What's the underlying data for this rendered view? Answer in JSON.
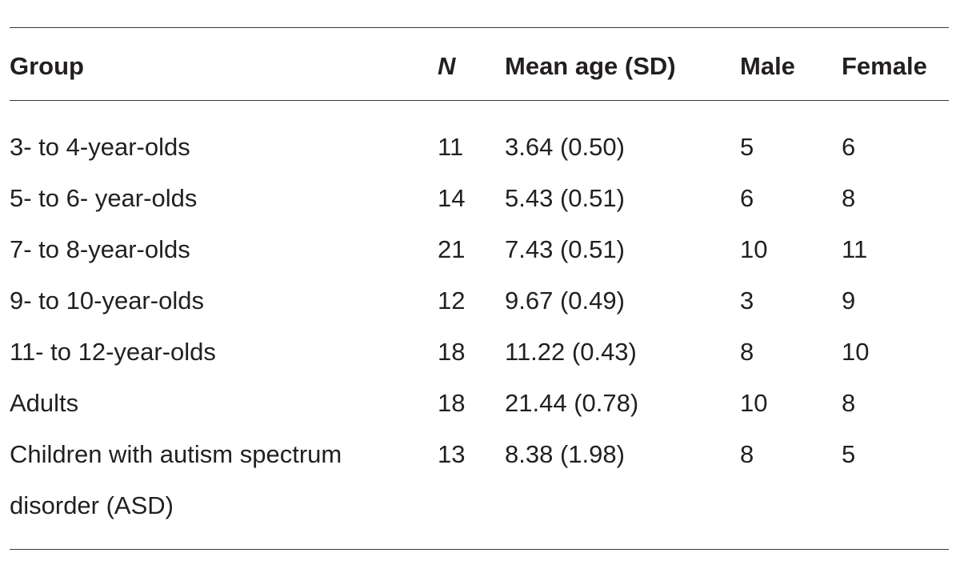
{
  "table": {
    "headers": {
      "group": "Group",
      "n": "N",
      "mean_age": "Mean age (SD)",
      "male": "Male",
      "female": "Female"
    },
    "rows": [
      {
        "group": "3- to 4-year-olds",
        "n": "11",
        "mean_age": "3.64 (0.50)",
        "male": "5",
        "female": "6"
      },
      {
        "group": "5- to 6- year-olds",
        "n": "14",
        "mean_age": "5.43 (0.51)",
        "male": "6",
        "female": "8"
      },
      {
        "group": "7- to 8-year-olds",
        "n": "21",
        "mean_age": "7.43 (0.51)",
        "male": "10",
        "female": "11"
      },
      {
        "group": "9- to 10-year-olds",
        "n": "12",
        "mean_age": "9.67 (0.49)",
        "male": "3",
        "female": "9"
      },
      {
        "group": "11- to 12-year-olds",
        "n": "18",
        "mean_age": "11.22 (0.43)",
        "male": "8",
        "female": "10"
      },
      {
        "group": "Adults",
        "n": "18",
        "mean_age": "21.44 (0.78)",
        "male": "10",
        "female": "8"
      },
      {
        "group_line1": "Children with autism spectrum",
        "group_line2": "disorder (ASD)",
        "n": "13",
        "mean_age": "8.38 (1.98)",
        "male": "8",
        "female": "5"
      }
    ]
  }
}
